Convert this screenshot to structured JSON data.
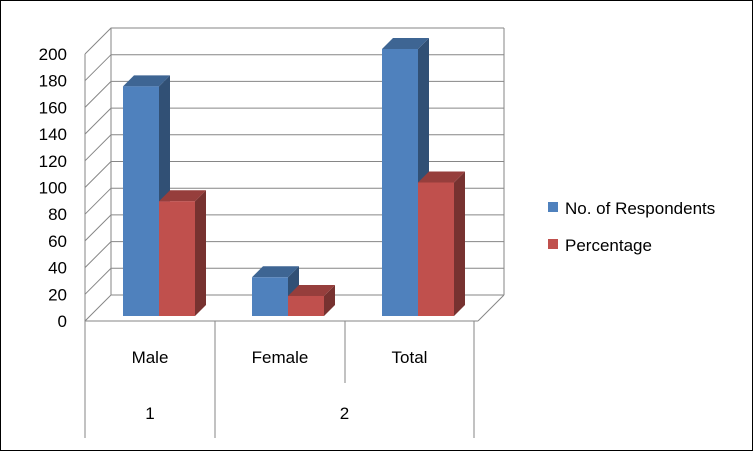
{
  "chart_data": {
    "type": "bar",
    "title": "",
    "xlabel": "",
    "ylabel": "",
    "ylim": [
      0,
      200
    ],
    "y_ticks": [
      "0",
      "20",
      "40",
      "60",
      "80",
      "100",
      "120",
      "140",
      "160",
      "180",
      "200"
    ],
    "grid": true,
    "three_d": true,
    "legend_position": "right",
    "categories": [
      "Male",
      "Female",
      "Total"
    ],
    "category_groups": [
      {
        "label": "1",
        "span": 1
      },
      {
        "label": "2",
        "span": 2
      }
    ],
    "series": [
      {
        "name": "No. of Respondents",
        "color": "#4f81bd",
        "values": [
          172,
          29,
          200
        ]
      },
      {
        "name": "Percentage",
        "color": "#c0504d",
        "values": [
          86,
          15,
          100
        ]
      }
    ]
  }
}
